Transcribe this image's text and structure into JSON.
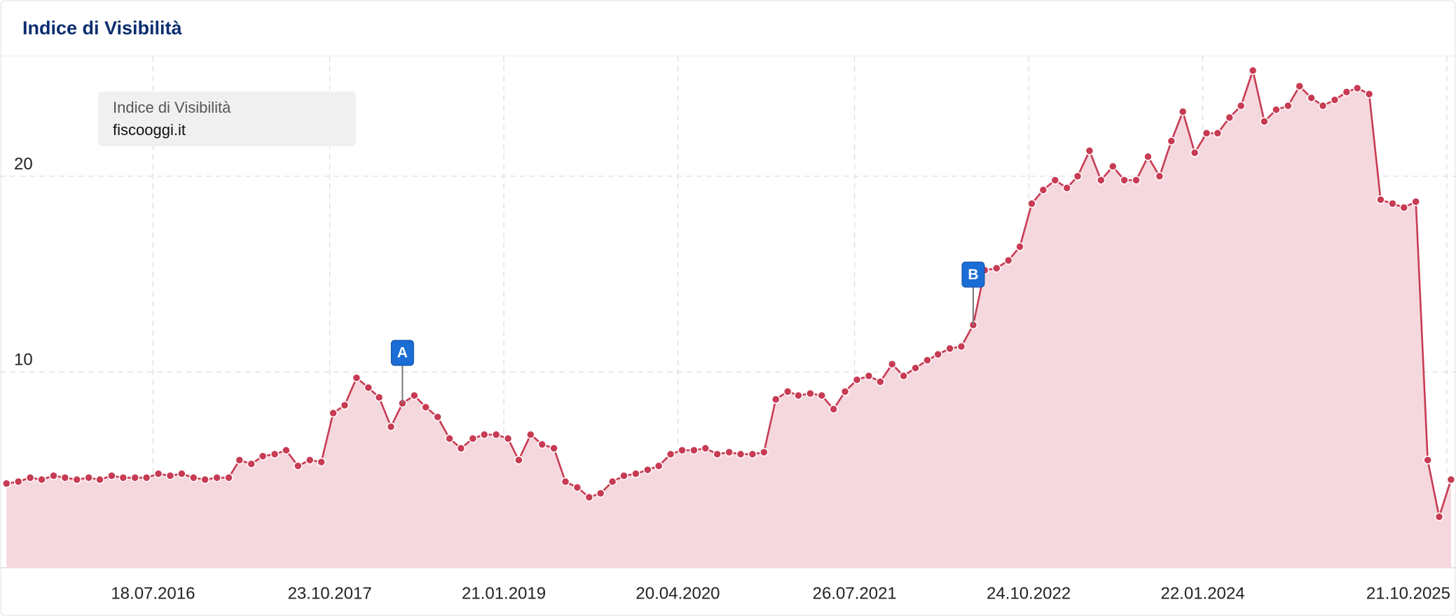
{
  "chart_data": {
    "type": "area",
    "title": "Indice di Visibilità",
    "legend_title": "Indice di Visibilità",
    "x": [
      "01.07.2015",
      "01.08.2015",
      "01.09.2015",
      "01.10.2015",
      "01.11.2015",
      "01.12.2015",
      "01.01.2016",
      "01.02.2016",
      "01.03.2016",
      "01.04.2016",
      "01.05.2016",
      "01.06.2016",
      "01.07.2016",
      "01.08.2016",
      "01.09.2016",
      "01.10.2016",
      "01.11.2016",
      "01.12.2016",
      "01.01.2017",
      "01.02.2017",
      "01.03.2017",
      "01.04.2017",
      "01.05.2017",
      "01.06.2017",
      "01.07.2017",
      "01.08.2017",
      "01.09.2017",
      "01.10.2017",
      "01.11.2017",
      "01.12.2017",
      "01.01.2018",
      "01.02.2018",
      "01.03.2018",
      "01.04.2018",
      "01.05.2018",
      "01.06.2018",
      "01.07.2018",
      "01.08.2018",
      "01.09.2018",
      "01.10.2018",
      "01.11.2018",
      "01.12.2018",
      "01.01.2019",
      "01.02.2019",
      "01.03.2019",
      "01.04.2019",
      "01.05.2019",
      "01.06.2019",
      "01.07.2019",
      "01.08.2019",
      "01.09.2019",
      "01.10.2019",
      "01.11.2019",
      "01.12.2019",
      "01.01.2020",
      "01.02.2020",
      "01.03.2020",
      "01.04.2020",
      "01.05.2020",
      "01.06.2020",
      "01.07.2020",
      "01.08.2020",
      "01.09.2020",
      "01.10.2020",
      "01.11.2020",
      "01.12.2020",
      "01.01.2021",
      "01.02.2021",
      "01.03.2021",
      "01.04.2021",
      "01.05.2021",
      "01.06.2021",
      "01.07.2021",
      "01.08.2021",
      "01.09.2021",
      "01.10.2021",
      "01.11.2021",
      "01.12.2021",
      "01.01.2022",
      "01.02.2022",
      "01.03.2022",
      "01.04.2022",
      "01.05.2022",
      "01.06.2022",
      "01.07.2022",
      "01.08.2022",
      "01.09.2022",
      "01.10.2022",
      "01.11.2022",
      "01.12.2022",
      "01.01.2023",
      "01.02.2023",
      "01.03.2023",
      "01.04.2023",
      "01.05.2023",
      "01.06.2023",
      "01.07.2023",
      "01.08.2023",
      "01.09.2023",
      "01.10.2023",
      "01.11.2023",
      "01.12.2023",
      "01.01.2024",
      "01.02.2024",
      "01.03.2024",
      "01.04.2024",
      "01.05.2024",
      "01.06.2024",
      "01.07.2024",
      "01.08.2024",
      "01.09.2024",
      "01.10.2024",
      "01.11.2024",
      "01.12.2024",
      "01.01.2025",
      "01.02.2025",
      "01.03.2025",
      "01.04.2025",
      "01.05.2025",
      "01.06.2025",
      "01.07.2025",
      "01.08.2025",
      "01.09.2025",
      "01.10.2025",
      "01.11.2025"
    ],
    "series": [
      {
        "name": "fiscooggi.it",
        "color": "#c73b53",
        "fill": "#f5d8de",
        "values": [
          4.3,
          4.4,
          4.6,
          4.5,
          4.7,
          4.6,
          4.5,
          4.6,
          4.5,
          4.7,
          4.6,
          4.6,
          4.6,
          4.8,
          4.7,
          4.8,
          4.6,
          4.5,
          4.6,
          4.6,
          5.5,
          5.3,
          5.7,
          5.8,
          6.0,
          5.2,
          5.5,
          5.4,
          7.9,
          8.3,
          9.7,
          9.2,
          8.7,
          7.2,
          8.4,
          8.8,
          8.2,
          7.7,
          6.6,
          6.1,
          6.6,
          6.8,
          6.8,
          6.6,
          5.5,
          6.8,
          6.3,
          6.1,
          4.4,
          4.1,
          3.6,
          3.8,
          4.4,
          4.7,
          4.8,
          5.0,
          5.2,
          5.8,
          6.0,
          6.0,
          6.1,
          5.8,
          5.9,
          5.8,
          5.8,
          5.9,
          8.6,
          9.0,
          8.8,
          8.9,
          8.8,
          8.1,
          9.0,
          9.6,
          9.8,
          9.5,
          10.4,
          9.8,
          10.2,
          10.6,
          10.9,
          11.2,
          11.3,
          12.4,
          15.2,
          15.3,
          15.7,
          16.4,
          18.6,
          19.3,
          19.8,
          19.4,
          20.0,
          21.3,
          19.8,
          20.5,
          19.8,
          19.8,
          21.0,
          20.0,
          21.8,
          23.3,
          21.2,
          22.2,
          22.2,
          23.0,
          23.6,
          25.4,
          22.8,
          23.4,
          23.6,
          24.6,
          24.0,
          23.6,
          23.9,
          24.3,
          24.5,
          24.2,
          18.8,
          18.6,
          18.4,
          18.7,
          5.5,
          2.6,
          4.5
        ]
      }
    ],
    "annotations": [
      {
        "x": "01.05.2018",
        "label": "A"
      },
      {
        "x": "01.06.2022",
        "label": "B"
      }
    ],
    "xlim": [
      "14.06.2015",
      "14.11.2025"
    ],
    "xticks": [
      "18.07.2016",
      "23.10.2017",
      "21.01.2019",
      "20.04.2020",
      "26.07.2021",
      "24.10.2022",
      "22.01.2024",
      "21.10.2025"
    ],
    "ylim": [
      0,
      26
    ],
    "yticks": [
      10,
      20
    ],
    "grid": true
  }
}
